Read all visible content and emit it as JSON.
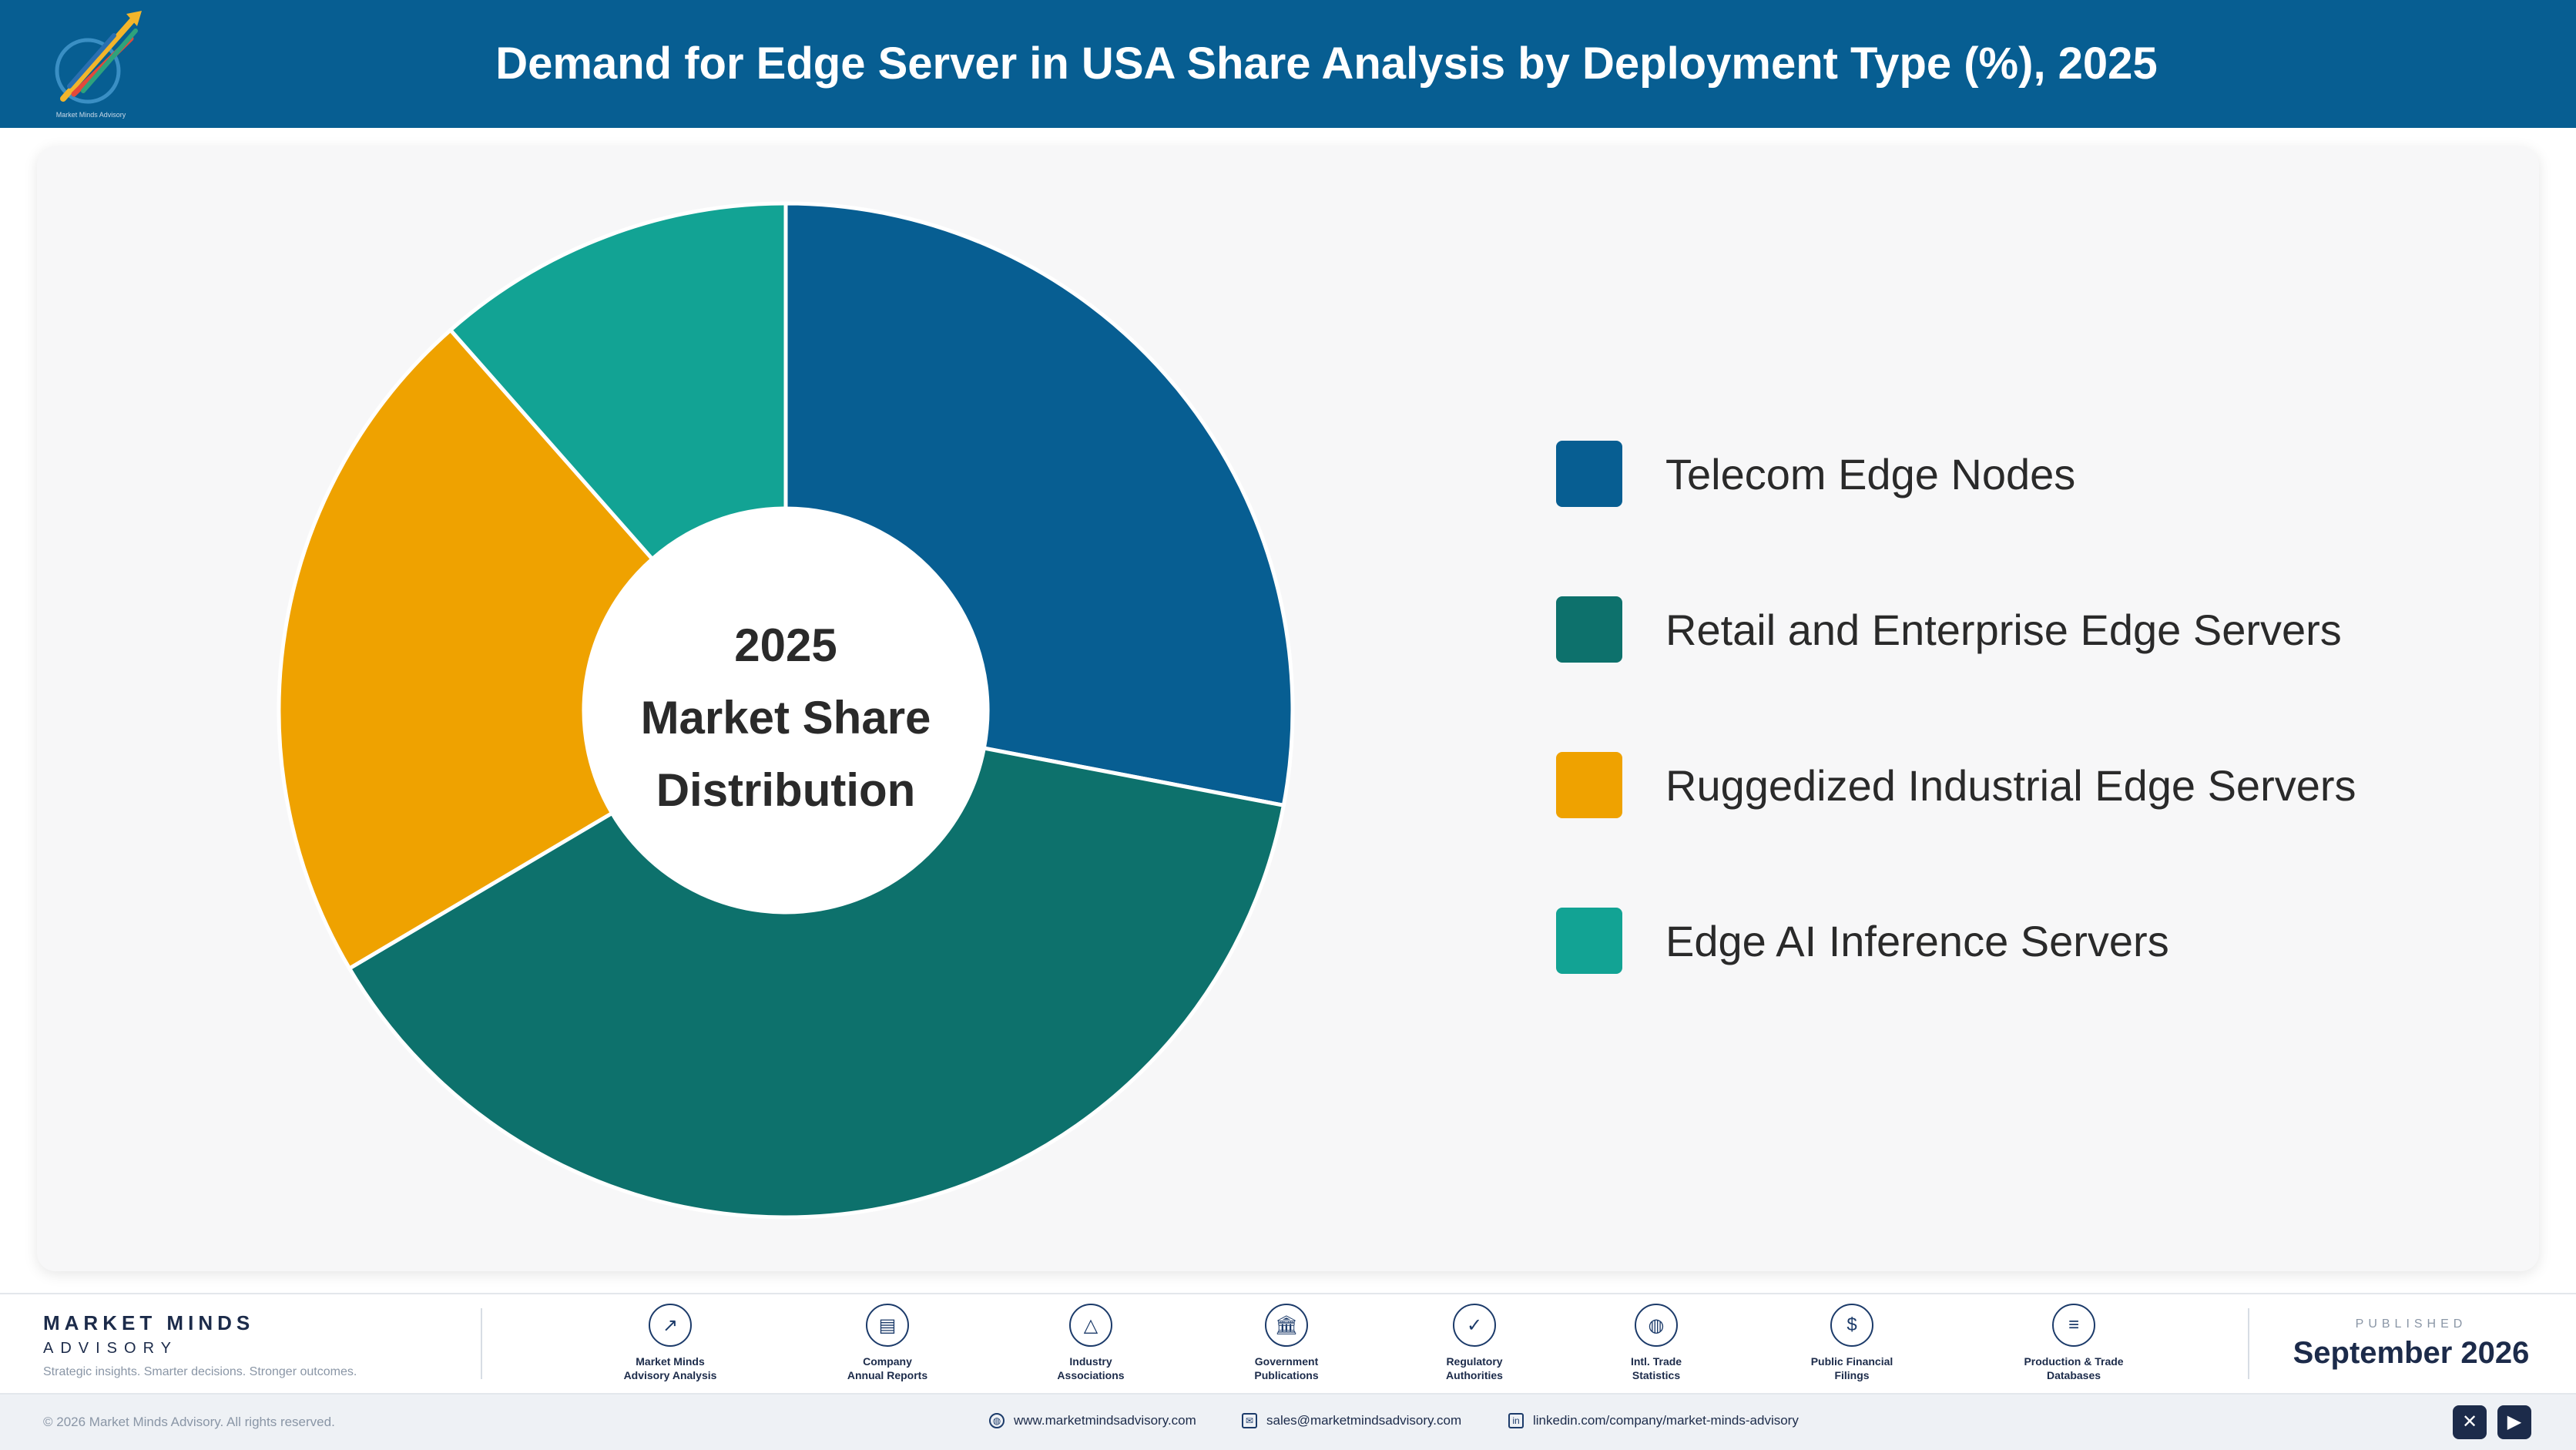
{
  "header": {
    "title": "Demand for Edge Server in USA Share Analysis by Deployment Type (%), 2025",
    "logo_icon": "market-minds-logo-icon",
    "logo_text": "Market Minds Advisory",
    "background": "#075e92"
  },
  "chart_data": {
    "type": "pie",
    "title": "Demand for Edge Server in USA Share Analysis by Deployment Type (%), 2025",
    "center_label": [
      "2025",
      "Market Share",
      "Distribution"
    ],
    "categories": [
      "Telecom Edge Nodes",
      "Retail and Enterprise Edge Servers",
      "Ruggedized Industrial Edge Servers",
      "Edge AI Inference Servers"
    ],
    "values": [
      28.0,
      38.5,
      22.0,
      11.5
    ],
    "colors": [
      "#075e92",
      "#0d716c",
      "#efa200",
      "#12a394"
    ],
    "legend_position": "right",
    "donut": true
  },
  "footer": {
    "brand_name": "MARKET MINDS",
    "brand_sub": "ADVISORY",
    "brand_tagline": "Strategic insights. Smarter decisions. Stronger outcomes.",
    "sources": [
      {
        "label": "Market Minds\nAdvisory Analysis",
        "icon": "trend-line-icon",
        "glyph": "↗"
      },
      {
        "label": "Company\nAnnual Reports",
        "icon": "document-icon",
        "glyph": "▤"
      },
      {
        "label": "Industry\nAssociations",
        "icon": "network-icon",
        "glyph": "△"
      },
      {
        "label": "Government\nPublications",
        "icon": "government-building-icon",
        "glyph": "🏛"
      },
      {
        "label": "Regulatory\nAuthorities",
        "icon": "shield-check-icon",
        "glyph": "✓"
      },
      {
        "label": "Intl. Trade\nStatistics",
        "icon": "globe-icon",
        "glyph": "◍"
      },
      {
        "label": "Public Financial\nFilings",
        "icon": "dollar-coin-icon",
        "glyph": "$"
      },
      {
        "label": "Production & Trade\nDatabases",
        "icon": "database-icon",
        "glyph": "≡"
      }
    ],
    "published_label": "PUBLISHED",
    "published_date": "September 2026"
  },
  "bottom_bar": {
    "copyright": "© 2026 Market Minds Advisory. All rights reserved.",
    "website": "www.marketmindsadvisory.com",
    "email": "sales@marketmindsadvisory.com",
    "linkedin": "linkedin.com/company/market-minds-advisory",
    "social_x_icon": "x-icon",
    "social_youtube_icon": "youtube-icon"
  }
}
